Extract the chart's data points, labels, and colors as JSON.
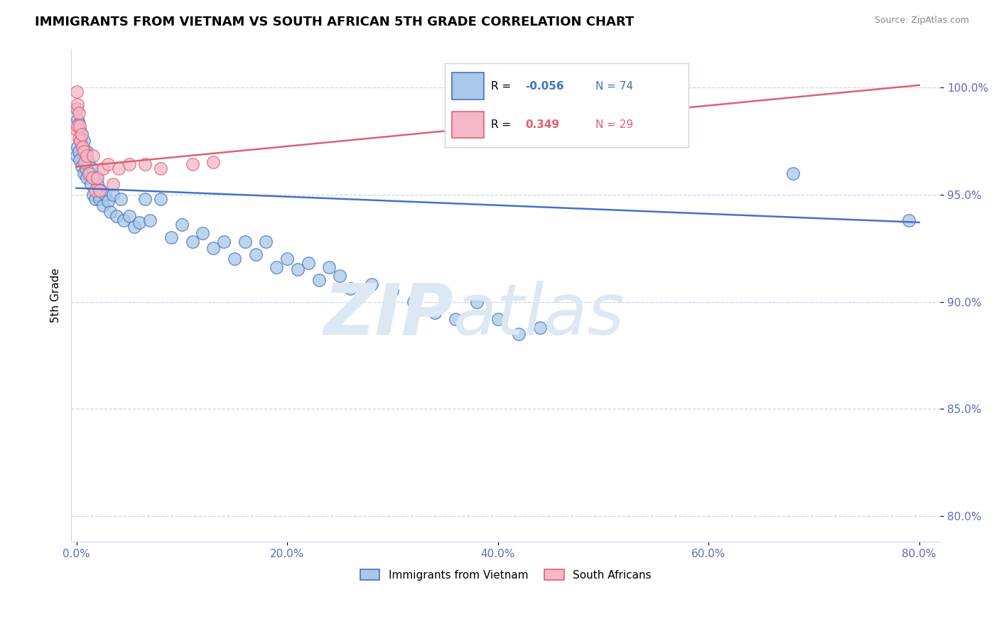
{
  "title": "IMMIGRANTS FROM VIETNAM VS SOUTH AFRICAN 5TH GRADE CORRELATION CHART",
  "source": "Source: ZipAtlas.com",
  "ylabel": "5th Grade",
  "x_tick_labels": [
    "0.0%",
    "20.0%",
    "40.0%",
    "60.0%",
    "80.0%"
  ],
  "x_tick_vals": [
    0.0,
    0.2,
    0.4,
    0.6,
    0.8
  ],
  "y_tick_labels": [
    "80.0%",
    "85.0%",
    "90.0%",
    "95.0%",
    "100.0%"
  ],
  "y_tick_vals": [
    0.8,
    0.85,
    0.9,
    0.95,
    1.0
  ],
  "xlim": [
    -0.005,
    0.82
  ],
  "ylim": [
    0.788,
    1.018
  ],
  "blue_scatter_x": [
    0.0,
    0.0,
    0.001,
    0.001,
    0.002,
    0.002,
    0.003,
    0.003,
    0.004,
    0.005,
    0.005,
    0.006,
    0.007,
    0.007,
    0.008,
    0.009,
    0.01,
    0.01,
    0.011,
    0.012,
    0.013,
    0.014,
    0.015,
    0.016,
    0.017,
    0.018,
    0.019,
    0.02,
    0.021,
    0.022,
    0.023,
    0.025,
    0.027,
    0.03,
    0.032,
    0.035,
    0.038,
    0.042,
    0.045,
    0.05,
    0.055,
    0.06,
    0.065,
    0.07,
    0.08,
    0.09,
    0.1,
    0.11,
    0.12,
    0.13,
    0.14,
    0.15,
    0.16,
    0.17,
    0.18,
    0.19,
    0.2,
    0.21,
    0.22,
    0.23,
    0.24,
    0.25,
    0.26,
    0.28,
    0.3,
    0.32,
    0.34,
    0.36,
    0.38,
    0.4,
    0.42,
    0.44,
    0.68,
    0.79
  ],
  "blue_scatter_y": [
    0.99,
    0.968,
    0.985,
    0.972,
    0.983,
    0.97,
    0.98,
    0.966,
    0.975,
    0.978,
    0.963,
    0.972,
    0.975,
    0.96,
    0.97,
    0.962,
    0.97,
    0.958,
    0.965,
    0.96,
    0.96,
    0.955,
    0.962,
    0.95,
    0.958,
    0.948,
    0.958,
    0.955,
    0.95,
    0.948,
    0.952,
    0.945,
    0.95,
    0.947,
    0.942,
    0.95,
    0.94,
    0.948,
    0.938,
    0.94,
    0.935,
    0.937,
    0.948,
    0.938,
    0.948,
    0.93,
    0.936,
    0.928,
    0.932,
    0.925,
    0.928,
    0.92,
    0.928,
    0.922,
    0.928,
    0.916,
    0.92,
    0.915,
    0.918,
    0.91,
    0.916,
    0.912,
    0.906,
    0.908,
    0.905,
    0.9,
    0.895,
    0.892,
    0.9,
    0.892,
    0.885,
    0.888,
    0.96,
    0.938
  ],
  "pink_scatter_x": [
    0.0,
    0.0,
    0.0,
    0.001,
    0.001,
    0.002,
    0.002,
    0.003,
    0.004,
    0.005,
    0.006,
    0.007,
    0.008,
    0.01,
    0.012,
    0.015,
    0.016,
    0.018,
    0.02,
    0.022,
    0.025,
    0.03,
    0.035,
    0.04,
    0.05,
    0.065,
    0.08,
    0.11,
    0.13
  ],
  "pink_scatter_y": [
    0.998,
    0.99,
    0.98,
    0.992,
    0.982,
    0.988,
    0.976,
    0.982,
    0.975,
    0.978,
    0.972,
    0.97,
    0.965,
    0.968,
    0.96,
    0.958,
    0.968,
    0.952,
    0.958,
    0.952,
    0.962,
    0.964,
    0.955,
    0.962,
    0.964,
    0.964,
    0.962,
    0.964,
    0.965
  ],
  "blue_line_x": [
    0.0,
    0.8
  ],
  "blue_line_y": [
    0.953,
    0.937
  ],
  "pink_line_x": [
    0.0,
    0.8
  ],
  "pink_line_y": [
    0.963,
    1.001
  ],
  "legend_R_blue": "-0.056",
  "legend_N_blue": "74",
  "legend_R_pink": "0.349",
  "legend_N_pink": "29",
  "legend_label_blue": "Immigrants from Vietnam",
  "legend_label_pink": "South Africans",
  "blue_fill_color": "#aac8e8",
  "pink_fill_color": "#f4b8c8",
  "blue_edge_color": "#4472c4",
  "pink_edge_color": "#e06070",
  "blue_line_color": "#4472c4",
  "pink_line_color": "#e06070",
  "title_fontsize": 13,
  "tick_color": "#5b6db5",
  "watermark_zip": "ZIP",
  "watermark_atlas": "atlas",
  "watermark_color": "#dce8f4",
  "grid_color": "#c8d4ec",
  "source_color": "#888888",
  "legend_box_color": "#e8eef8",
  "legend_border_color": "#c8d4ec"
}
